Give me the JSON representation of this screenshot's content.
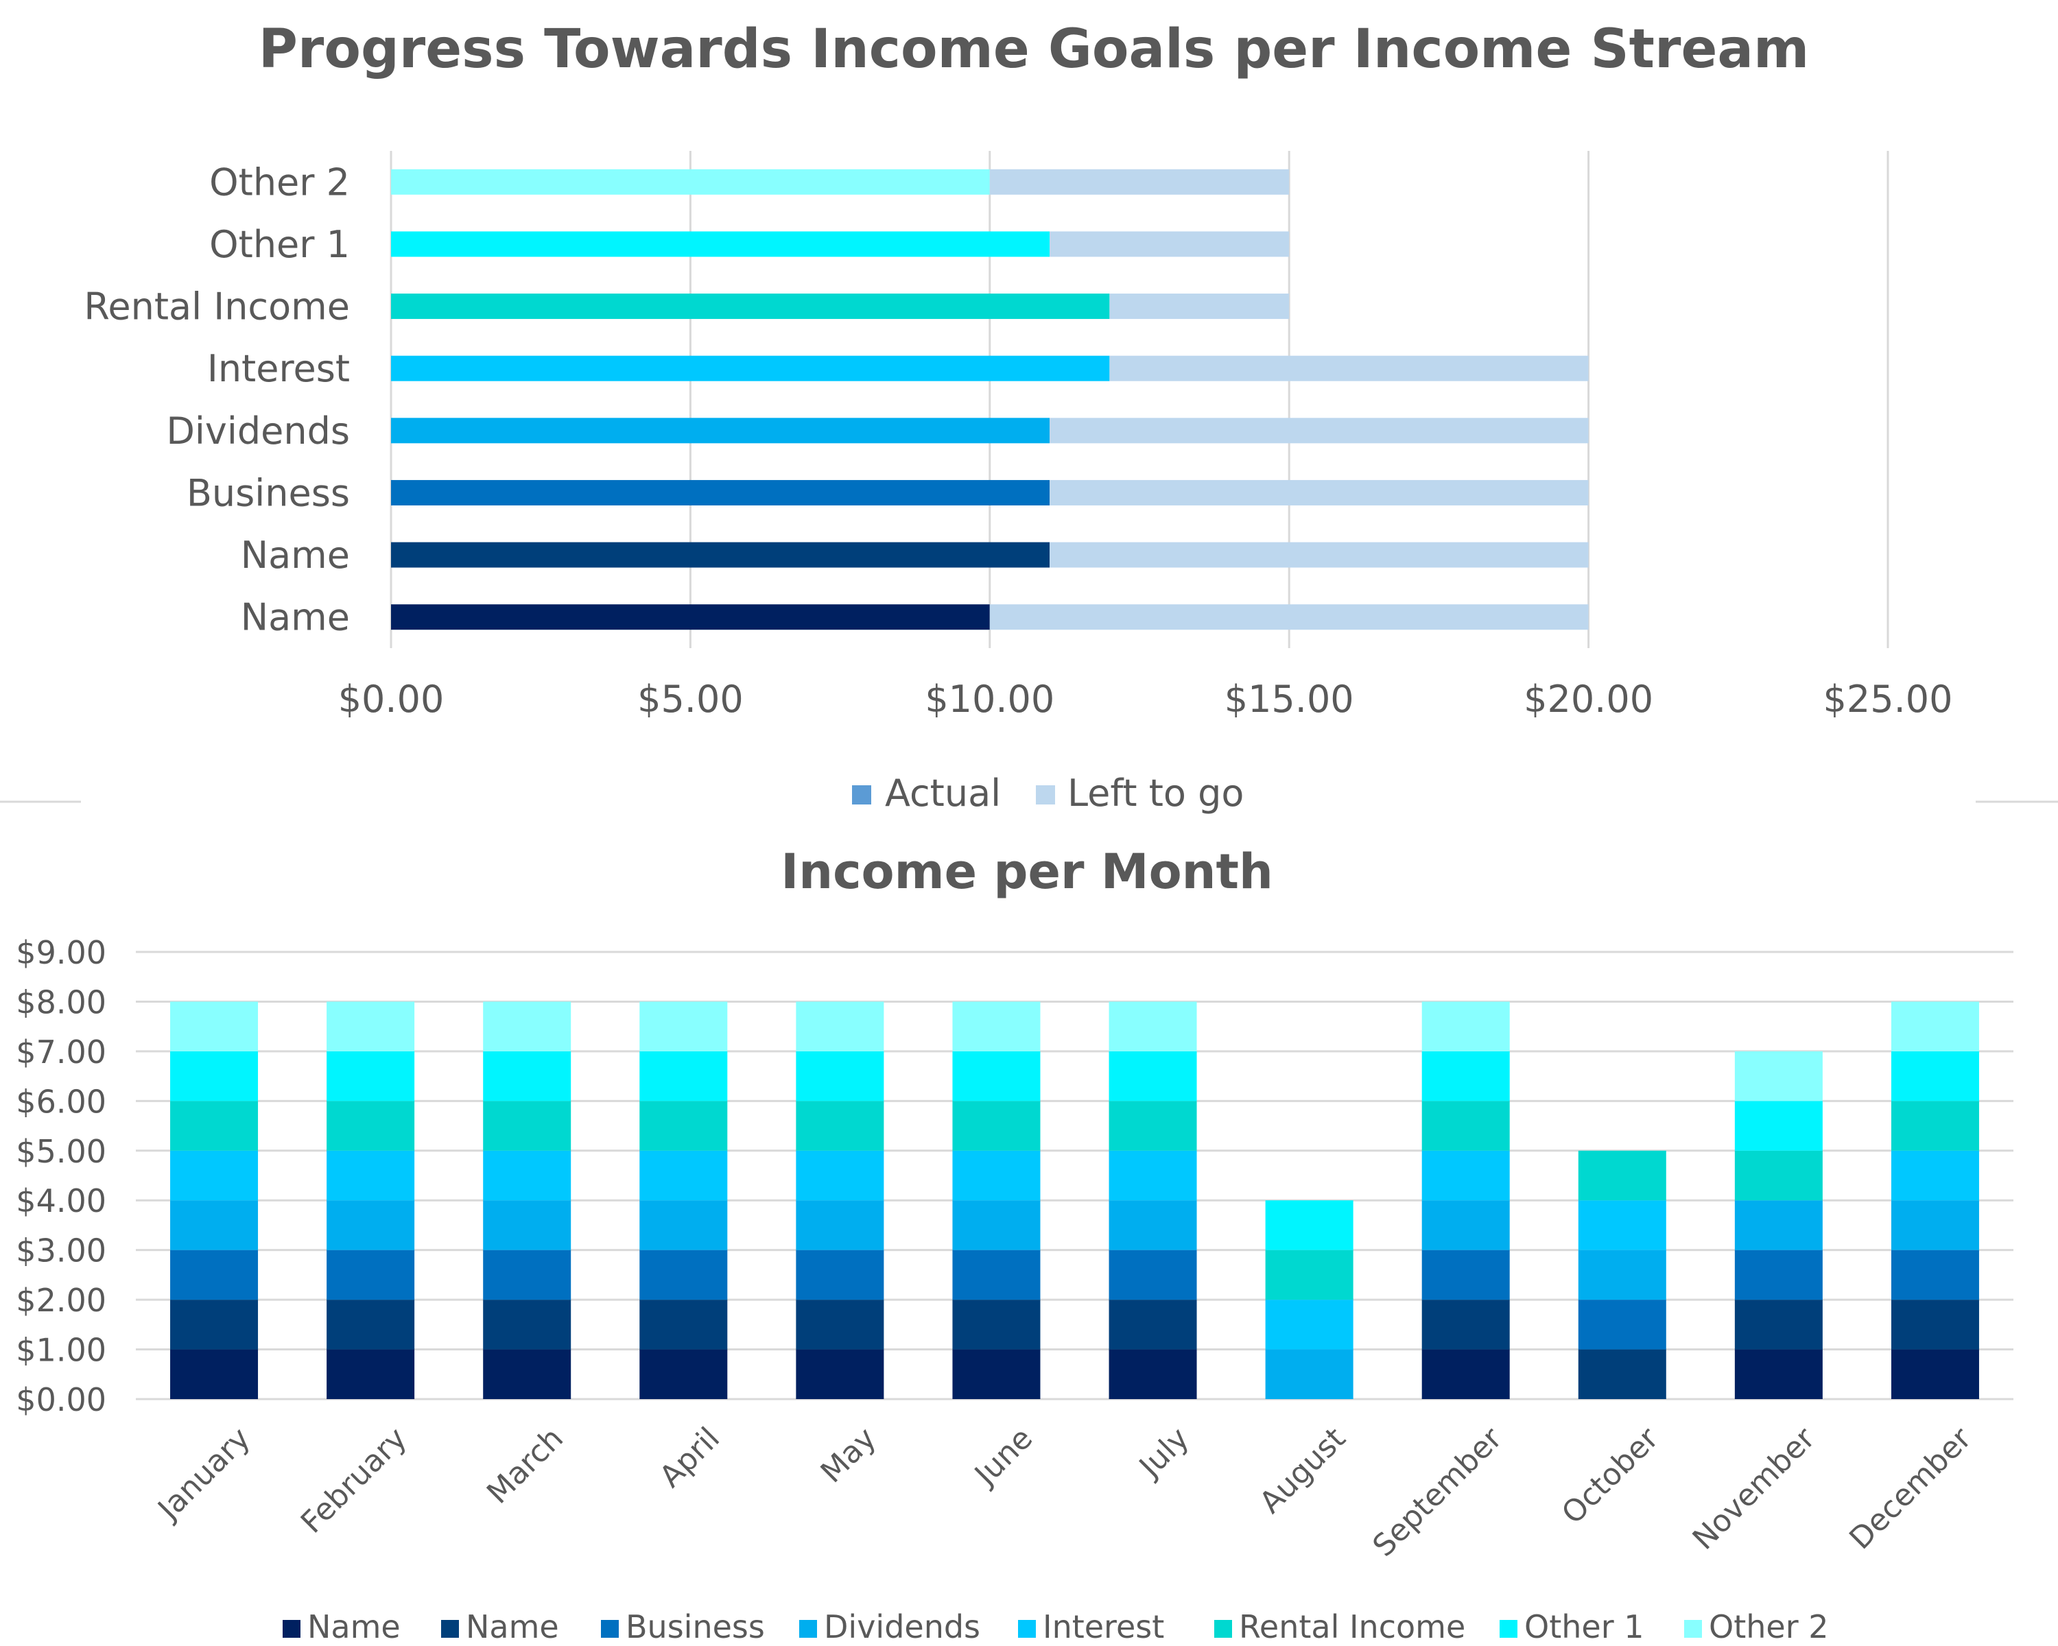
{
  "chart_data": [
    {
      "type": "bar",
      "orientation": "horizontal",
      "stacked": true,
      "title": "Progress Towards Income Goals per Income Stream",
      "categories": [
        "Name",
        "Name",
        "Business",
        "Dividends",
        "Interest",
        "Rental Income",
        "Other 1",
        "Other 2"
      ],
      "series": [
        {
          "name": "Actual",
          "values": [
            10,
            11,
            11,
            11,
            12,
            12,
            11,
            10
          ],
          "colors": [
            "#002060",
            "#003F7A",
            "#0070C0",
            "#00AEEF",
            "#00C8FF",
            "#00D8D0",
            "#00F5FF",
            "#88FFFF"
          ],
          "legend_color": "#5B9BD5"
        },
        {
          "name": "Left to go",
          "values": [
            10,
            9,
            9,
            9,
            8,
            3,
            4,
            5
          ],
          "color": "#BDD7EE"
        }
      ],
      "xlim": [
        0,
        25
      ],
      "xticks": [
        0,
        5,
        10,
        15,
        20,
        25
      ],
      "xtick_labels": [
        "$0.00",
        "$5.00",
        "$10.00",
        "$15.00",
        "$20.00",
        "$25.00"
      ],
      "grid": "vertical",
      "legend": "bottom"
    },
    {
      "type": "bar",
      "stacked": true,
      "title": "Income per Month",
      "categories": [
        "January",
        "February",
        "March",
        "April",
        "May",
        "June",
        "July",
        "August",
        "September",
        "October",
        "November",
        "December"
      ],
      "series": [
        {
          "name": "Name",
          "color": "#002060",
          "values": [
            1,
            1,
            1,
            1,
            1,
            1,
            1,
            0,
            1,
            0,
            1,
            1
          ]
        },
        {
          "name": "Name",
          "color": "#003F7A",
          "values": [
            1,
            1,
            1,
            1,
            1,
            1,
            1,
            0,
            1,
            1,
            1,
            1
          ]
        },
        {
          "name": "Business",
          "color": "#0070C0",
          "values": [
            1,
            1,
            1,
            1,
            1,
            1,
            1,
            0,
            1,
            1,
            1,
            1
          ]
        },
        {
          "name": "Dividends",
          "color": "#00AEEF",
          "values": [
            1,
            1,
            1,
            1,
            1,
            1,
            1,
            1,
            1,
            1,
            1,
            1
          ]
        },
        {
          "name": "Interest",
          "color": "#00C8FF",
          "values": [
            1,
            1,
            1,
            1,
            1,
            1,
            1,
            1,
            1,
            1,
            0,
            1
          ]
        },
        {
          "name": "Rental Income",
          "color": "#00D8D0",
          "values": [
            1,
            1,
            1,
            1,
            1,
            1,
            1,
            1,
            1,
            1,
            1,
            1
          ]
        },
        {
          "name": "Other 1",
          "color": "#00F5FF",
          "values": [
            1,
            1,
            1,
            1,
            1,
            1,
            1,
            1,
            1,
            0,
            1,
            1
          ]
        },
        {
          "name": "Other 2",
          "color": "#88FFFF",
          "values": [
            1,
            1,
            1,
            1,
            1,
            1,
            1,
            0,
            1,
            0,
            1,
            1
          ]
        }
      ],
      "ylim": [
        0,
        9
      ],
      "yticks": [
        0,
        1,
        2,
        3,
        4,
        5,
        6,
        7,
        8,
        9
      ],
      "ytick_labels": [
        "$0.00",
        "$1.00",
        "$2.00",
        "$3.00",
        "$4.00",
        "$5.00",
        "$6.00",
        "$7.00",
        "$8.00",
        "$9.00"
      ],
      "grid": "horizontal",
      "legend": "bottom"
    }
  ]
}
